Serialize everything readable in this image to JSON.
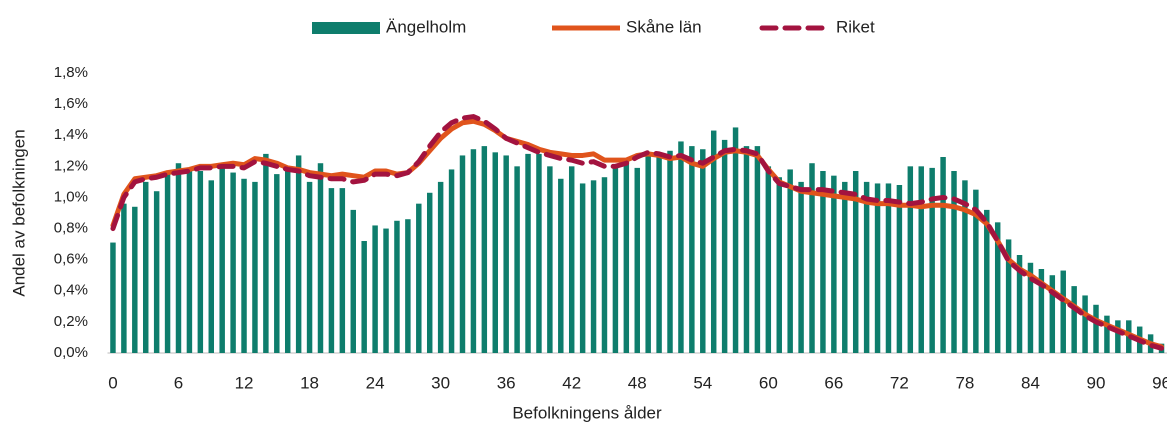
{
  "chart_data": {
    "type": "bar_line",
    "xlabel": "Befolkningens ålder",
    "ylabel": "Andel av befolkningen",
    "categories": [
      "0",
      null,
      null,
      null,
      null,
      null,
      "6",
      null,
      null,
      null,
      null,
      null,
      "12",
      null,
      null,
      null,
      null,
      null,
      "18",
      null,
      null,
      null,
      null,
      null,
      "24",
      null,
      null,
      null,
      null,
      null,
      "30",
      null,
      null,
      null,
      null,
      null,
      "36",
      null,
      null,
      null,
      null,
      null,
      "42",
      null,
      null,
      null,
      null,
      null,
      "48",
      null,
      null,
      null,
      null,
      null,
      "54",
      null,
      null,
      null,
      null,
      null,
      "60",
      null,
      null,
      null,
      null,
      null,
      "66",
      null,
      null,
      null,
      null,
      null,
      "72",
      null,
      null,
      null,
      null,
      null,
      "78",
      null,
      null,
      null,
      null,
      null,
      "84",
      null,
      null,
      null,
      null,
      null,
      "90",
      null,
      null,
      null,
      null,
      null,
      "96"
    ],
    "ylim": [
      0,
      1.8
    ],
    "yticks": [
      {
        "value": 0,
        "label": "0,0%"
      },
      {
        "value": 0.2,
        "label": "0,2%"
      },
      {
        "value": 0.4,
        "label": "0,4%"
      },
      {
        "value": 0.6,
        "label": "0,6%"
      },
      {
        "value": 0.8,
        "label": "0,8%"
      },
      {
        "value": 1.0,
        "label": "1,0%"
      },
      {
        "value": 1.2,
        "label": "1,2%"
      },
      {
        "value": 1.4,
        "label": "1,4%"
      },
      {
        "value": 1.6,
        "label": "1,6%"
      },
      {
        "value": 1.8,
        "label": "1,8%"
      }
    ],
    "legend": "top",
    "series": [
      {
        "name": "Ängelholm",
        "kind": "bar",
        "color": "#0e7d6c",
        "values": [
          0.71,
          0.96,
          0.94,
          1.1,
          1.04,
          1.15,
          1.22,
          1.19,
          1.17,
          1.11,
          1.21,
          1.16,
          1.12,
          1.1,
          1.28,
          1.15,
          1.2,
          1.27,
          1.1,
          1.22,
          1.06,
          1.06,
          0.92,
          0.72,
          0.82,
          0.8,
          0.85,
          0.86,
          0.96,
          1.03,
          1.1,
          1.18,
          1.27,
          1.31,
          1.33,
          1.29,
          1.27,
          1.2,
          1.28,
          1.28,
          1.2,
          1.12,
          1.2,
          1.09,
          1.11,
          1.13,
          1.19,
          1.25,
          1.19,
          1.28,
          1.27,
          1.3,
          1.36,
          1.33,
          1.31,
          1.43,
          1.37,
          1.45,
          1.33,
          1.33,
          1.2,
          1.13,
          1.18,
          1.1,
          1.22,
          1.17,
          1.14,
          1.1,
          1.17,
          1.1,
          1.09,
          1.09,
          1.08,
          1.2,
          1.2,
          1.19,
          1.26,
          1.17,
          1.11,
          1.05,
          0.92,
          0.84,
          0.73,
          0.63,
          0.58,
          0.54,
          0.5,
          0.53,
          0.43,
          0.37,
          0.31,
          0.24,
          0.21,
          0.21,
          0.17,
          0.12,
          0.06
        ]
      },
      {
        "name": "Skåne län",
        "kind": "line",
        "color": "#e0541c",
        "values": [
          0.82,
          1.02,
          1.12,
          1.13,
          1.14,
          1.16,
          1.17,
          1.18,
          1.2,
          1.2,
          1.21,
          1.22,
          1.21,
          1.25,
          1.24,
          1.22,
          1.19,
          1.18,
          1.16,
          1.15,
          1.14,
          1.15,
          1.14,
          1.13,
          1.17,
          1.17,
          1.15,
          1.16,
          1.22,
          1.3,
          1.38,
          1.44,
          1.48,
          1.49,
          1.47,
          1.43,
          1.38,
          1.36,
          1.34,
          1.31,
          1.29,
          1.28,
          1.27,
          1.27,
          1.28,
          1.24,
          1.24,
          1.24,
          1.27,
          1.28,
          1.27,
          1.25,
          1.26,
          1.22,
          1.2,
          1.25,
          1.29,
          1.3,
          1.29,
          1.27,
          1.18,
          1.1,
          1.07,
          1.04,
          1.03,
          1.02,
          1.01,
          1.0,
          0.99,
          0.97,
          0.96,
          0.96,
          0.95,
          0.95,
          0.94,
          0.95,
          0.95,
          0.94,
          0.92,
          0.89,
          0.83,
          0.72,
          0.6,
          0.54,
          0.5,
          0.45,
          0.4,
          0.35,
          0.3,
          0.25,
          0.21,
          0.18,
          0.15,
          0.12,
          0.09,
          0.06,
          0.04
        ]
      },
      {
        "name": "Riket",
        "kind": "dash",
        "color": "#a3133f",
        "values": [
          0.8,
          1.0,
          1.1,
          1.12,
          1.13,
          1.15,
          1.16,
          1.17,
          1.19,
          1.19,
          1.2,
          1.2,
          1.19,
          1.23,
          1.22,
          1.2,
          1.18,
          1.17,
          1.14,
          1.13,
          1.12,
          1.12,
          1.1,
          1.11,
          1.15,
          1.15,
          1.14,
          1.16,
          1.23,
          1.33,
          1.42,
          1.48,
          1.51,
          1.52,
          1.49,
          1.44,
          1.38,
          1.35,
          1.32,
          1.29,
          1.27,
          1.25,
          1.24,
          1.22,
          1.23,
          1.2,
          1.2,
          1.22,
          1.26,
          1.29,
          1.28,
          1.26,
          1.27,
          1.24,
          1.22,
          1.26,
          1.3,
          1.31,
          1.3,
          1.28,
          1.17,
          1.09,
          1.07,
          1.05,
          1.05,
          1.05,
          1.04,
          1.03,
          1.02,
          0.99,
          0.98,
          0.98,
          0.97,
          0.96,
          0.97,
          0.99,
          1.0,
          0.99,
          0.96,
          0.92,
          0.84,
          0.72,
          0.59,
          0.53,
          0.48,
          0.44,
          0.39,
          0.34,
          0.29,
          0.24,
          0.2,
          0.17,
          0.14,
          0.11,
          0.08,
          0.05,
          0.03
        ]
      }
    ]
  }
}
